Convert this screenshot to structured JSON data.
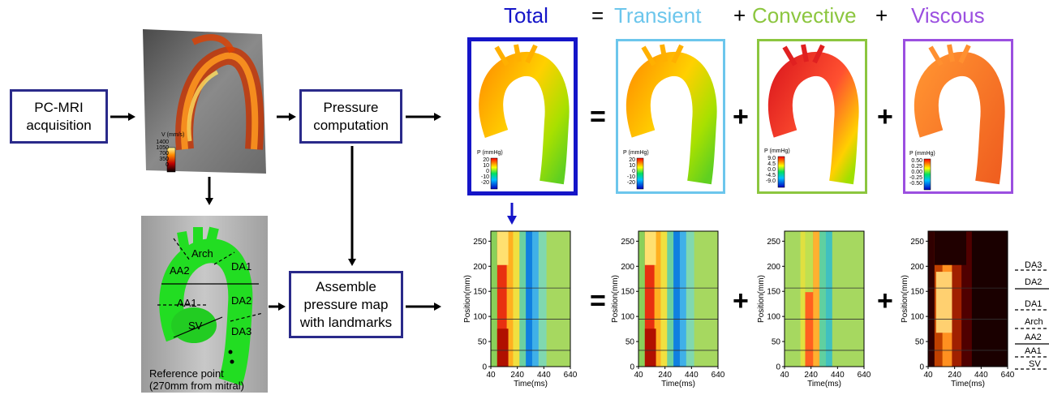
{
  "header": {
    "total": "Total",
    "eq": "=",
    "transient": "Transient",
    "plus1": "+",
    "convective": "Convective",
    "plus2": "+",
    "viscous": "Viscous"
  },
  "colors": {
    "total": "#1515c8",
    "transient": "#6cc6ec",
    "convective": "#8cc63f",
    "viscous": "#9b4fe0",
    "box_border": "#2a2a8a"
  },
  "boxes": {
    "pcmri": "PC-MRI\nacquisition",
    "pressure": "Pressure\ncomputation",
    "assemble": "Assemble\npressure map\nwith landmarks"
  },
  "mri": {
    "velocity_label": "V (mm/s)",
    "ticks": [
      "1400",
      "1050",
      "700",
      "350",
      "0"
    ]
  },
  "anatomy": {
    "labels": [
      "Arch",
      "AA2",
      "DA1",
      "AA1",
      "DA2",
      "SV",
      "DA3"
    ],
    "reference": "Reference point\n(270mm from mitral)"
  },
  "pressure_panels": [
    {
      "label": "P (mmHg)",
      "ticks": [
        "20",
        "10",
        "0",
        "-10",
        "-20"
      ]
    },
    {
      "label": "P (mmHg)",
      "ticks": [
        "20",
        "10",
        "0",
        "-10",
        "-20"
      ]
    },
    {
      "label": "P (mmHg)",
      "ticks": [
        "9.0",
        "4.5",
        "0.0",
        "-4.5",
        "-9.0"
      ]
    },
    {
      "label": "P (mmHg)",
      "ticks": [
        "0.50",
        "0.25",
        "0.00",
        "-0.25",
        "-0.50"
      ]
    }
  ],
  "operators": {
    "eq": "=",
    "plus": "+"
  },
  "maps": {
    "ylabel": "Position(mm)",
    "xlabel": "Time(ms)",
    "yticks": [
      "0",
      "50",
      "100",
      "150",
      "200",
      "250"
    ],
    "xticks": [
      "40",
      "240",
      "440",
      "640"
    ]
  },
  "landmarks": [
    "DA3",
    "DA2",
    "DA1",
    "Arch",
    "AA2",
    "AA1",
    "SV"
  ]
}
